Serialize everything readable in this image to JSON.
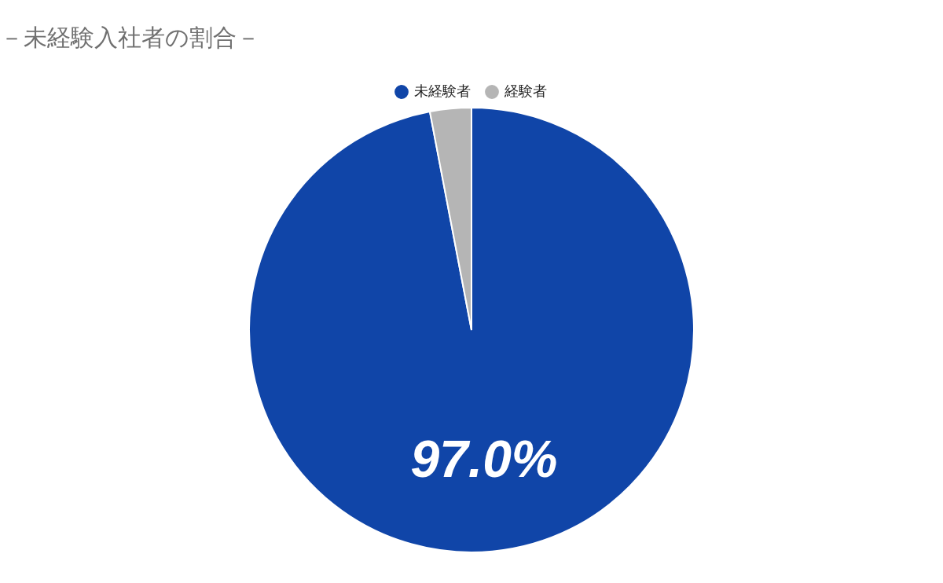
{
  "chart_data": {
    "type": "pie",
    "title": "－未経験入社者の割合－",
    "categories": [
      "未経験者",
      "経験者"
    ],
    "values": [
      97.0,
      3.0
    ],
    "colors": [
      "#1045a8",
      "#b5b5b5"
    ],
    "value_labels": [
      "97.0%",
      null
    ],
    "legend": "top"
  }
}
